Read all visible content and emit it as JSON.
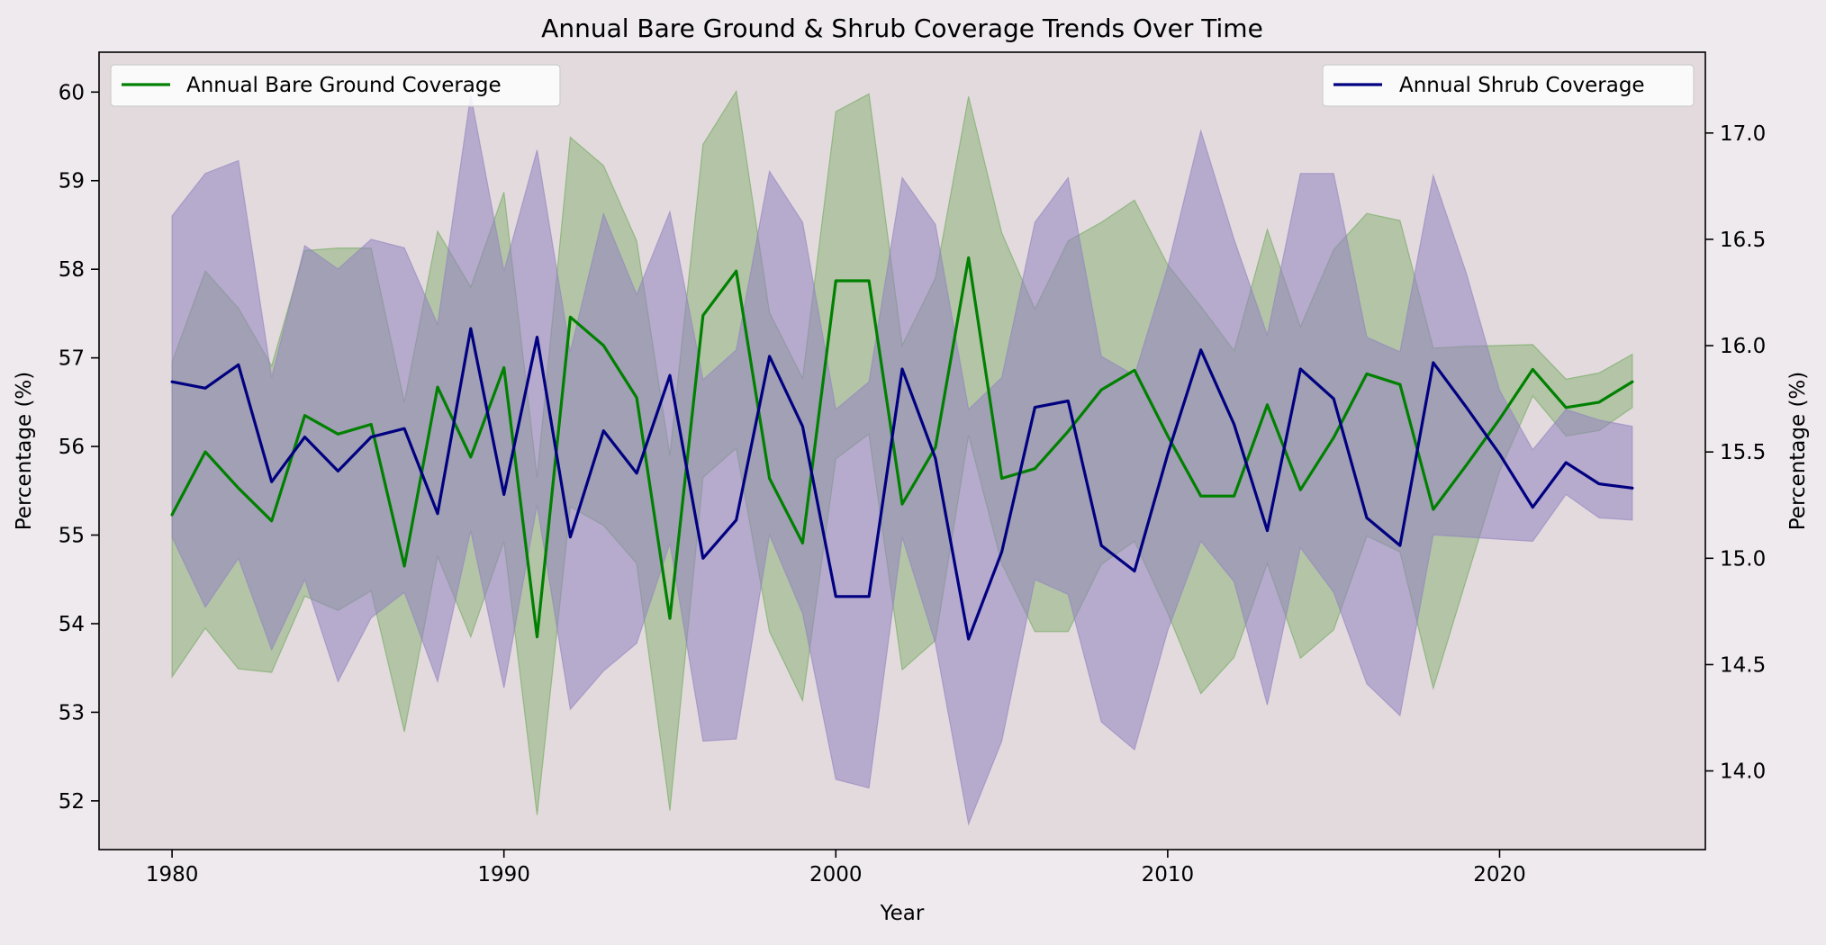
{
  "chart_data": {
    "type": "line",
    "title": "Annual Bare Ground & Shrub Coverage Trends Over Time",
    "xlabel": "Year",
    "ylabel_left": "Percentage (%)",
    "ylabel_right": "Percentage (%)",
    "x_ticks": [
      1980,
      1990,
      2000,
      2010,
      2020
    ],
    "y_left_ticks": [
      52,
      53,
      54,
      55,
      56,
      57,
      58,
      59,
      60
    ],
    "y_right_ticks": [
      "14.0",
      "14.5",
      "15.0",
      "15.5",
      "16.0",
      "16.5",
      "17.0"
    ],
    "xlim": [
      1977.8,
      2026.2
    ],
    "ylim_left": [
      51.45,
      60.45
    ],
    "ylim_right": [
      13.63,
      17.38
    ],
    "grid": false,
    "legend_left_position": "upper-left",
    "legend_right_position": "upper-right",
    "background_color": "#e3dade",
    "x": [
      1980,
      1981,
      1982,
      1983,
      1984,
      1985,
      1986,
      1987,
      1988,
      1989,
      1990,
      1991,
      1992,
      1993,
      1994,
      1995,
      1996,
      1997,
      1998,
      1999,
      2000,
      2001,
      2002,
      2003,
      2004,
      2005,
      2006,
      2007,
      2008,
      2009,
      2010,
      2011,
      2012,
      2013,
      2014,
      2015,
      2016,
      2017,
      2018,
      2019,
      2020,
      2021,
      2022,
      2023,
      2024
    ],
    "series": [
      {
        "name": "Annual Bare Ground Coverage",
        "axis": "left",
        "color": "#008000",
        "band_color": "#6fa85a",
        "values": [
          55.23,
          55.94,
          55.53,
          55.16,
          56.35,
          56.14,
          56.25,
          54.65,
          56.67,
          55.88,
          56.89,
          53.85,
          57.46,
          57.14,
          56.55,
          54.06,
          57.48,
          57.98,
          55.64,
          54.91,
          57.87,
          57.87,
          55.35,
          55.99,
          58.13,
          55.64,
          55.75,
          56.17,
          56.64,
          56.86,
          56.12,
          55.44,
          55.44,
          56.47,
          55.51,
          56.1,
          56.82,
          56.7,
          55.29,
          55.79,
          56.31,
          56.87,
          56.44,
          56.5,
          56.73
        ],
        "upper": [
          56.95,
          57.98,
          57.56,
          56.91,
          58.21,
          58.24,
          58.24,
          56.5,
          58.43,
          57.8,
          58.87,
          55.65,
          59.49,
          59.17,
          58.32,
          55.9,
          59.41,
          60.01,
          57.51,
          56.77,
          59.78,
          59.98,
          57.14,
          57.9,
          59.95,
          58.41,
          57.55,
          58.32,
          58.53,
          58.78,
          58.05,
          57.58,
          57.08,
          58.45,
          57.35,
          58.22,
          58.63,
          58.55,
          57.11,
          57.13,
          57.14,
          57.15,
          56.76,
          56.83,
          57.04
        ],
        "lower": [
          53.4,
          53.95,
          53.49,
          53.45,
          54.31,
          54.15,
          54.37,
          52.78,
          54.76,
          53.85,
          54.93,
          51.84,
          55.32,
          55.11,
          54.68,
          51.89,
          55.65,
          55.98,
          53.91,
          53.13,
          55.86,
          56.14,
          53.48,
          53.81,
          56.13,
          54.68,
          53.91,
          53.91,
          54.67,
          54.93,
          54.12,
          53.21,
          53.62,
          54.68,
          53.61,
          53.93,
          54.99,
          54.81,
          53.27,
          54.5,
          55.72,
          56.57,
          56.12,
          56.18,
          56.44
        ]
      },
      {
        "name": "Annual Shrub Coverage",
        "axis": "right",
        "color": "#000080",
        "band_color": "#9184c0",
        "values": [
          15.83,
          15.8,
          15.91,
          15.36,
          15.57,
          15.41,
          15.57,
          15.61,
          15.21,
          16.08,
          15.3,
          16.04,
          15.1,
          15.6,
          15.4,
          15.86,
          15.0,
          15.18,
          15.95,
          15.62,
          14.82,
          14.82,
          15.89,
          15.47,
          14.62,
          15.03,
          15.71,
          15.74,
          15.06,
          14.94,
          15.49,
          15.98,
          15.63,
          15.13,
          15.89,
          15.75,
          15.19,
          15.06,
          15.92,
          15.71,
          15.49,
          15.24,
          15.45,
          15.35,
          15.33
        ],
        "upper": [
          16.61,
          16.81,
          16.87,
          15.85,
          16.47,
          16.36,
          16.5,
          16.46,
          16.1,
          17.18,
          16.35,
          16.92,
          15.97,
          16.62,
          16.24,
          16.63,
          15.84,
          15.98,
          16.82,
          16.58,
          15.7,
          15.83,
          16.79,
          16.57,
          15.7,
          15.85,
          16.58,
          16.79,
          15.95,
          15.86,
          16.37,
          17.01,
          16.5,
          16.05,
          16.81,
          16.81,
          16.04,
          15.97,
          16.8,
          16.34,
          15.79,
          15.51,
          15.7,
          15.65,
          15.62
        ],
        "lower": [
          15.1,
          14.77,
          15.0,
          14.57,
          14.9,
          14.42,
          14.72,
          14.84,
          14.42,
          15.13,
          14.39,
          15.25,
          14.29,
          14.47,
          14.6,
          15.07,
          14.14,
          14.15,
          15.11,
          14.74,
          13.96,
          13.92,
          15.1,
          14.6,
          13.75,
          14.14,
          14.9,
          14.83,
          14.23,
          14.1,
          14.66,
          15.08,
          14.89,
          14.31,
          15.05,
          14.84,
          14.41,
          14.26,
          15.11,
          15.1,
          15.09,
          15.08,
          15.3,
          15.19,
          15.18
        ]
      }
    ]
  }
}
